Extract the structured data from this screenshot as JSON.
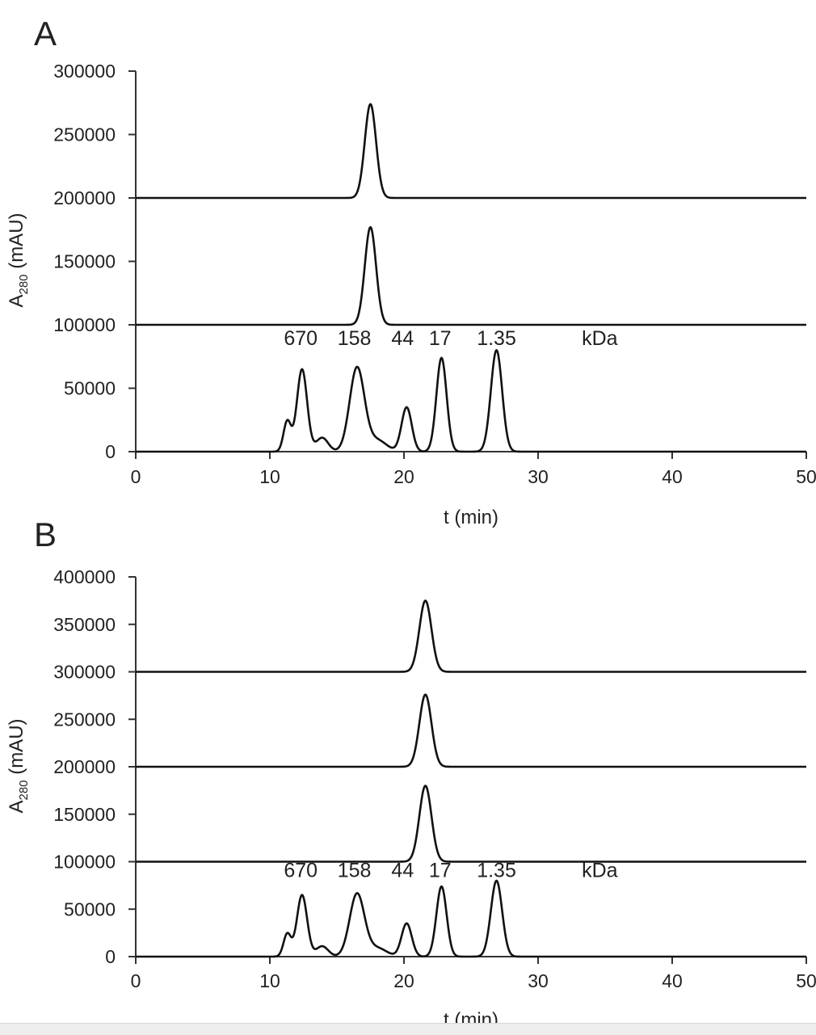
{
  "chart_data": [
    {
      "panel_label": "A",
      "type": "line",
      "ylabel_main": "A",
      "ylabel_sub": "280",
      "ylabel_unit": " (mAU)",
      "xlabel": "t (min)",
      "xlim": [
        0,
        50
      ],
      "ylim": [
        0,
        300000
      ],
      "xticks": [
        "0",
        "10",
        "20",
        "30",
        "40",
        "50"
      ],
      "yticks": [
        "0",
        "50000",
        "100000",
        "150000",
        "200000",
        "250000",
        "300000"
      ],
      "line_color": "#111111",
      "annotations": [
        {
          "text": "670",
          "x": 12.3,
          "y": 84000
        },
        {
          "text": "158",
          "x": 16.3,
          "y": 84000
        },
        {
          "text": "44",
          "x": 19.9,
          "y": 84000
        },
        {
          "text": "17",
          "x": 22.7,
          "y": 84000
        },
        {
          "text": "1.35",
          "x": 26.9,
          "y": 84000
        },
        {
          "text": "kDa",
          "x": 34.6,
          "y": 84000
        }
      ],
      "series": [
        {
          "baseline": 0,
          "peaks": [
            {
              "t": 11.3,
              "h": 24000,
              "w": 0.28
            },
            {
              "t": 12.4,
              "h": 65000,
              "w": 0.38
            },
            {
              "t": 13.9,
              "h": 11000,
              "w": 0.45
            },
            {
              "t": 16.5,
              "h": 66000,
              "w": 0.55
            },
            {
              "t": 18.0,
              "h": 9000,
              "w": 0.7
            },
            {
              "t": 20.2,
              "h": 35000,
              "w": 0.38
            },
            {
              "t": 22.8,
              "h": 74000,
              "w": 0.38
            },
            {
              "t": 26.9,
              "h": 80000,
              "w": 0.42
            }
          ]
        },
        {
          "baseline": 100000,
          "peaks": [
            {
              "t": 17.5,
              "h": 77000,
              "w": 0.42
            }
          ]
        },
        {
          "baseline": 200000,
          "peaks": [
            {
              "t": 17.5,
              "h": 74000,
              "w": 0.42
            }
          ]
        }
      ]
    },
    {
      "panel_label": "B",
      "type": "line",
      "ylabel_main": "A",
      "ylabel_sub": "280",
      "ylabel_unit": " (mAU)",
      "xlabel": "t (min)",
      "xlim": [
        0,
        50
      ],
      "ylim": [
        0,
        400000
      ],
      "xticks": [
        "0",
        "10",
        "20",
        "30",
        "40",
        "50"
      ],
      "yticks": [
        "0",
        "50000",
        "100000",
        "150000",
        "200000",
        "250000",
        "300000",
        "350000",
        "400000"
      ],
      "line_color": "#111111",
      "annotations": [
        {
          "text": "670",
          "x": 12.3,
          "y": 84000
        },
        {
          "text": "158",
          "x": 16.3,
          "y": 84000
        },
        {
          "text": "44",
          "x": 19.9,
          "y": 84000
        },
        {
          "text": "17",
          "x": 22.7,
          "y": 84000
        },
        {
          "text": "1.35",
          "x": 26.9,
          "y": 84000
        },
        {
          "text": "kDa",
          "x": 34.6,
          "y": 84000
        }
      ],
      "series": [
        {
          "baseline": 0,
          "peaks": [
            {
              "t": 11.3,
              "h": 24000,
              "w": 0.28
            },
            {
              "t": 12.4,
              "h": 65000,
              "w": 0.38
            },
            {
              "t": 13.9,
              "h": 11000,
              "w": 0.45
            },
            {
              "t": 16.5,
              "h": 66000,
              "w": 0.55
            },
            {
              "t": 18.0,
              "h": 9000,
              "w": 0.7
            },
            {
              "t": 20.2,
              "h": 35000,
              "w": 0.38
            },
            {
              "t": 22.8,
              "h": 74000,
              "w": 0.38
            },
            {
              "t": 26.9,
              "h": 80000,
              "w": 0.42
            }
          ]
        },
        {
          "baseline": 100000,
          "peaks": [
            {
              "t": 21.6,
              "h": 80000,
              "w": 0.45
            }
          ]
        },
        {
          "baseline": 200000,
          "peaks": [
            {
              "t": 21.6,
              "h": 76000,
              "w": 0.45
            }
          ]
        },
        {
          "baseline": 300000,
          "peaks": [
            {
              "t": 21.6,
              "h": 75000,
              "w": 0.45
            }
          ]
        }
      ]
    }
  ]
}
